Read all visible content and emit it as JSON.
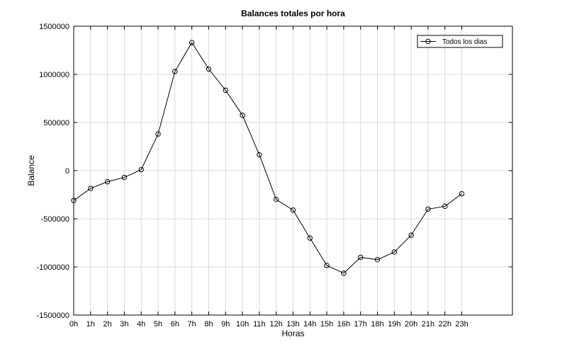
{
  "chart_data": {
    "type": "line",
    "title": "Balances totales por hora",
    "xlabel": "Horas",
    "ylabel": "Balance",
    "categories": [
      "0h",
      "1h",
      "2h",
      "3h",
      "4h",
      "5h",
      "6h",
      "7h",
      "8h",
      "9h",
      "10h",
      "11h",
      "12h",
      "13h",
      "14h",
      "15h",
      "16h",
      "17h",
      "18h",
      "19h",
      "20h",
      "21h",
      "22h",
      "23h"
    ],
    "x_extra_slots": 2,
    "ylim": [
      -1500000,
      1500000
    ],
    "yticks": [
      -1500000,
      -1000000,
      -500000,
      0,
      500000,
      1000000,
      1500000
    ],
    "ytick_labels": [
      "-1500000",
      "-1000000",
      "-500000",
      "0",
      "500000",
      "1000000",
      "1500000"
    ],
    "grid": true,
    "legend_position": "top-right",
    "series": [
      {
        "name": "Todos los dias",
        "color": "#000000",
        "marker": "circle",
        "values": [
          -310000,
          -185000,
          -115000,
          -70000,
          10000,
          380000,
          1030000,
          1330000,
          1055000,
          835000,
          575000,
          165000,
          -300000,
          -410000,
          -700000,
          -985000,
          -1065000,
          -900000,
          -925000,
          -845000,
          -670000,
          -400000,
          -370000,
          -240000
        ]
      }
    ]
  }
}
